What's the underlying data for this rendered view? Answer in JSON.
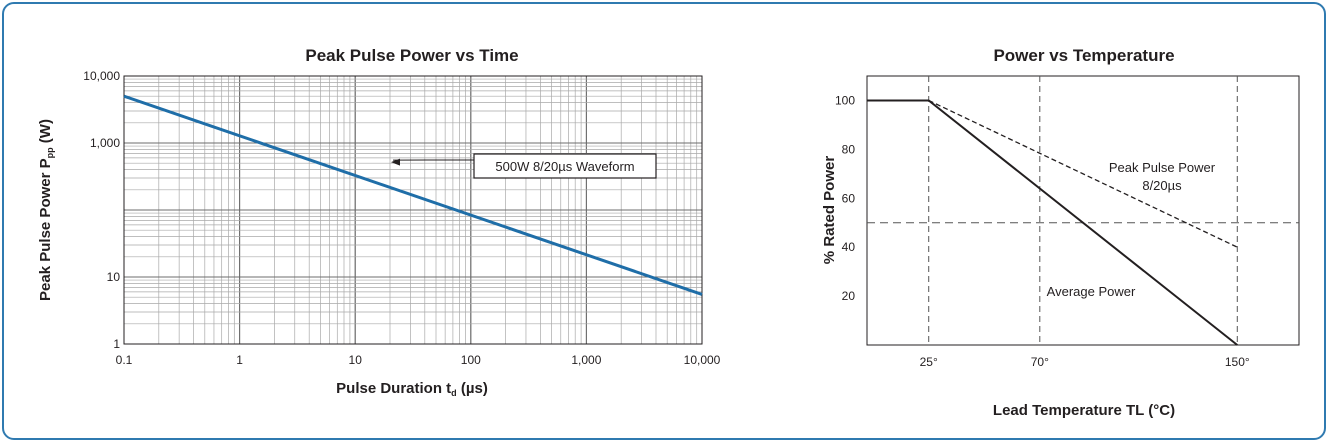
{
  "chart_data": [
    {
      "type": "line",
      "title": "Peak Pulse Power vs Time",
      "xlabel_main": "Pulse Duration t",
      "xlabel_sub": "d",
      "xlabel_unit": " (µs)",
      "ylabel_main": "Peak Pulse Power P",
      "ylabel_sub": "pp",
      "ylabel_unit": " (W)",
      "x_scale": "log",
      "y_scale": "log",
      "xlim": [
        0.1,
        10000
      ],
      "ylim": [
        1,
        10000
      ],
      "x_ticks": [
        0.1,
        1,
        10,
        100,
        1000,
        10000
      ],
      "x_tick_labels": [
        "0.1",
        "1",
        "10",
        "100",
        "1,000",
        "10,000"
      ],
      "y_ticks": [
        1,
        10,
        1000,
        10000
      ],
      "y_tick_labels": [
        "1",
        "10",
        "1,000",
        "10,000"
      ],
      "grid": true,
      "series": [
        {
          "color": "#1f6ea8",
          "x": [
            0.1,
            10000
          ],
          "y": [
            5000,
            5.5
          ]
        }
      ],
      "annotation": {
        "text": "500W 8/20µs Waveform",
        "x": 20,
        "y": 500
      }
    },
    {
      "type": "line",
      "title": "Power vs Temperature",
      "xlabel": "Lead Temperature TL (°C)",
      "ylabel": "% Rated Power",
      "xlim": [
        0,
        175
      ],
      "ylim": [
        0,
        110
      ],
      "x_ticks": [
        25,
        70,
        150
      ],
      "x_tick_labels": [
        "25°",
        "70°",
        "150°"
      ],
      "y_ticks": [
        20,
        40,
        60,
        80,
        100
      ],
      "y_tick_labels": [
        "20",
        "40",
        "60",
        "80",
        "100"
      ],
      "reference_line_y": 50,
      "series": [
        {
          "label": "Average Power",
          "style": "solid",
          "x": [
            0,
            25,
            150
          ],
          "y": [
            100,
            100,
            0
          ]
        },
        {
          "label_line1": "Peak Pulse Power",
          "label_line2": "8/20µs",
          "style": "dashed",
          "x": [
            25,
            150
          ],
          "y": [
            100,
            40
          ]
        }
      ]
    }
  ]
}
